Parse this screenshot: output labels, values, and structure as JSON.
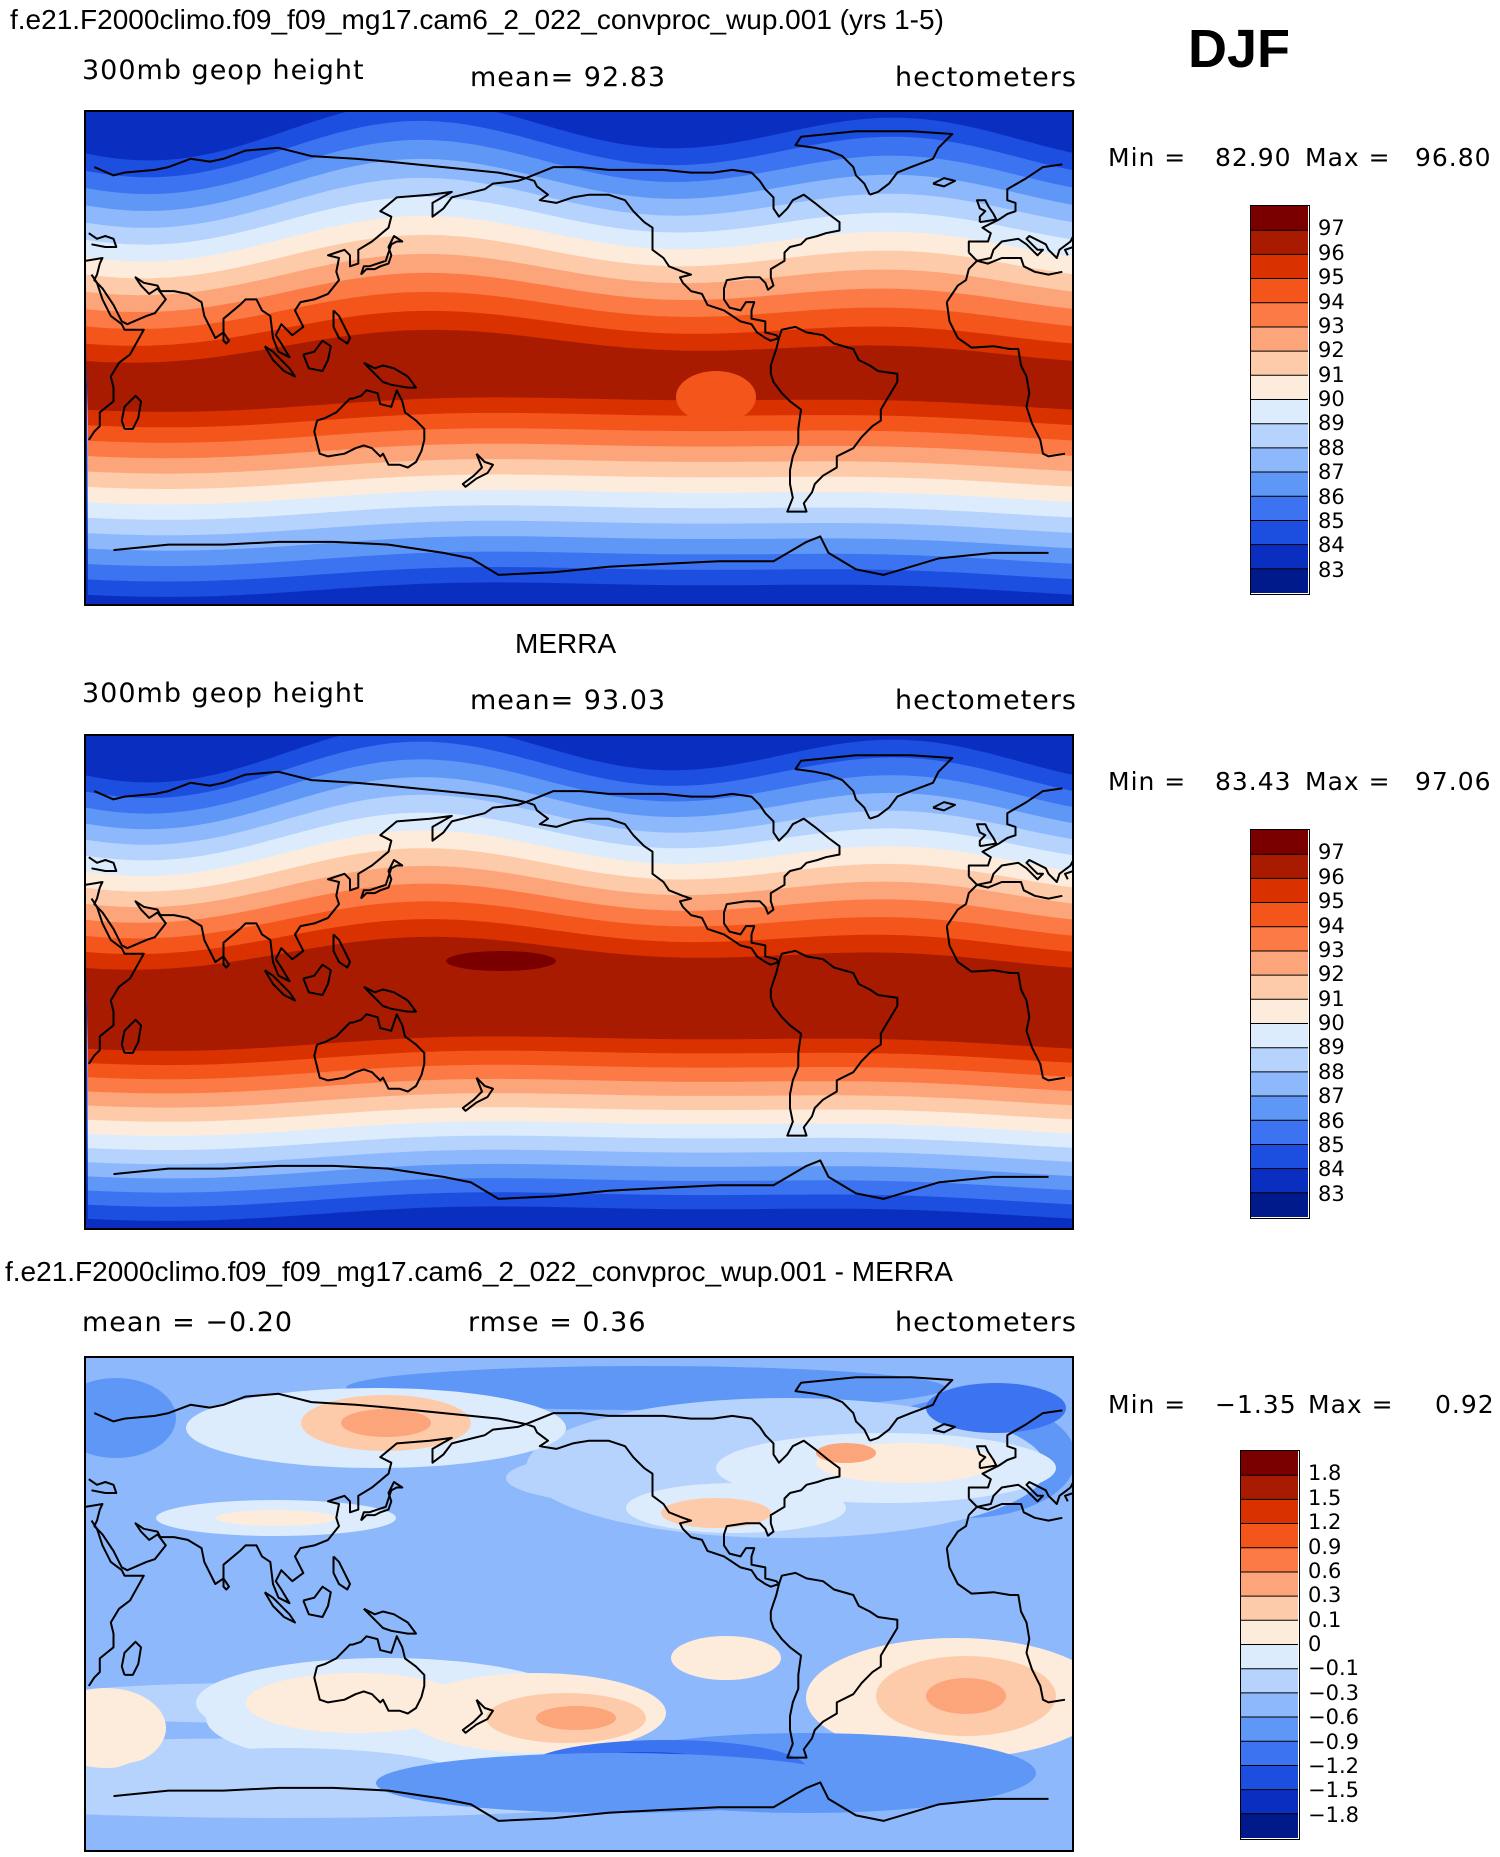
{
  "figure_label": "DJF",
  "panels": [
    {
      "title": "f.e21.F2000climo.f09_f09_mg17.cam6_2_022_convproc_wup.001 (yrs 1-5)",
      "left_label": "300mb geop height",
      "center_label": "mean=  92.83",
      "right_label": "hectometers",
      "min_label": "Min =",
      "min_value": "82.90",
      "max_label": "Max =",
      "max_value": "96.80",
      "field": "model"
    },
    {
      "title": "MERRA",
      "left_label": "300mb geop height",
      "center_label": "mean=  93.03",
      "right_label": "hectometers",
      "min_label": "Min =",
      "min_value": "83.43",
      "max_label": "Max =",
      "max_value": "97.06",
      "field": "merra"
    },
    {
      "title": "f.e21.F2000climo.f09_f09_mg17.cam6_2_022_convproc_wup.001 - MERRA",
      "left_label": "mean =  −0.20",
      "center_label": "rmse =   0.36",
      "right_label": "hectometers",
      "min_label": "Min =",
      "min_value": "−1.35",
      "max_label": "Max =",
      "max_value": "0.92",
      "field": "diff"
    }
  ],
  "colorbars": {
    "height": {
      "labels": [
        "97",
        "96",
        "95",
        "94",
        "93",
        "92",
        "91",
        "90",
        "89",
        "88",
        "87",
        "86",
        "85",
        "84",
        "83"
      ],
      "colors": [
        "#7a0000",
        "#a81b00",
        "#d93200",
        "#f4551b",
        "#fb7a45",
        "#fca57a",
        "#fdcbaa",
        "#fdecdc",
        "#ddecfd",
        "#b5d3fc",
        "#8db8fb",
        "#5f97f7",
        "#3b73f0",
        "#1c4ee0",
        "#0a2fc0",
        "#001a8c"
      ]
    },
    "diff": {
      "labels": [
        "1.8",
        "1.5",
        "1.2",
        "0.9",
        "0.6",
        "0.3",
        "0.1",
        "0",
        "−0.1",
        "−0.3",
        "−0.6",
        "−0.9",
        "−1.2",
        "−1.5",
        "−1.8"
      ],
      "colors": [
        "#7a0000",
        "#a81b00",
        "#d93200",
        "#f4551b",
        "#fb7a45",
        "#fca57a",
        "#fdcbaa",
        "#fdecdc",
        "#ddecfd",
        "#b5d3fc",
        "#8db8fb",
        "#5f97f7",
        "#3b73f0",
        "#1c4ee0",
        "#0a2fc0",
        "#001a8c"
      ]
    }
  }
}
